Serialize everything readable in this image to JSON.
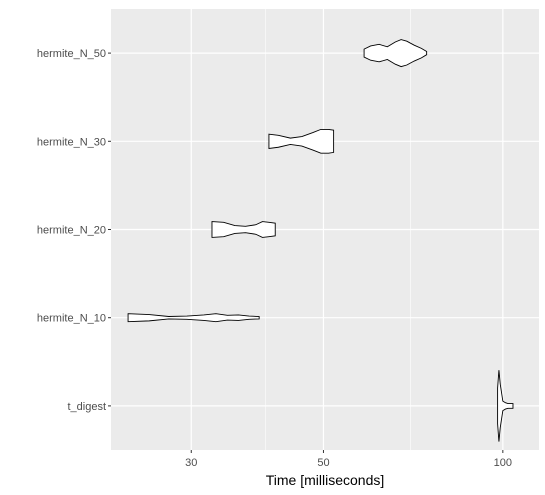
{
  "chart_data": {
    "type": "violin",
    "orientation": "horizontal",
    "title": "",
    "xlabel": "Time [milliseconds]",
    "ylabel": "",
    "x_scale": "log10",
    "xlim": [
      22,
      115
    ],
    "x_ticks": [
      30,
      50,
      100
    ],
    "x_tick_labels": [
      "30",
      "50",
      "100"
    ],
    "x_minor_gridlines": [
      40,
      70
    ],
    "grid": true,
    "legend": "none",
    "categories": [
      "hermite_N_50",
      "hermite_N_30",
      "hermite_N_20",
      "hermite_N_10",
      "t_digest"
    ],
    "series": [
      {
        "category": "hermite_N_50",
        "min": 58.5,
        "max": 74.5,
        "profile": [
          [
            58.5,
            0.1
          ],
          [
            60,
            0.18
          ],
          [
            62,
            0.22
          ],
          [
            64,
            0.16
          ],
          [
            66,
            0.28
          ],
          [
            67.5,
            0.34
          ],
          [
            69,
            0.3
          ],
          [
            71,
            0.2
          ],
          [
            73,
            0.12
          ],
          [
            74.5,
            0.04
          ]
        ]
      },
      {
        "category": "hermite_N_30",
        "min": 40.5,
        "max": 52,
        "profile": [
          [
            40.5,
            0.18
          ],
          [
            42,
            0.15
          ],
          [
            44,
            0.08
          ],
          [
            46,
            0.12
          ],
          [
            48,
            0.22
          ],
          [
            49.5,
            0.3
          ],
          [
            51,
            0.3
          ],
          [
            52,
            0.28
          ]
        ]
      },
      {
        "category": "hermite_N_20",
        "min": 32.5,
        "max": 41.5,
        "profile": [
          [
            32.5,
            0.2
          ],
          [
            34,
            0.18
          ],
          [
            35.5,
            0.1
          ],
          [
            37,
            0.08
          ],
          [
            38.5,
            0.12
          ],
          [
            39.5,
            0.2
          ],
          [
            40.5,
            0.18
          ],
          [
            41.5,
            0.16
          ]
        ]
      },
      {
        "category": "hermite_N_10",
        "min": 23.5,
        "max": 39,
        "profile": [
          [
            23.5,
            0.1
          ],
          [
            25.5,
            0.08
          ],
          [
            27.5,
            0.03
          ],
          [
            29.5,
            0.04
          ],
          [
            31.5,
            0.07
          ],
          [
            33,
            0.1
          ],
          [
            34.5,
            0.06
          ],
          [
            36,
            0.07
          ],
          [
            37.5,
            0.04
          ],
          [
            39,
            0.03
          ]
        ]
      },
      {
        "category": "t_digest",
        "min": 98,
        "max": 104,
        "profile": [
          [
            98,
            0.45
          ],
          [
            98.5,
            0.9
          ],
          [
            99,
            0.55
          ],
          [
            100,
            0.12
          ],
          [
            101,
            0.08
          ],
          [
            102,
            0.06
          ],
          [
            103,
            0.06
          ],
          [
            104,
            0.06
          ]
        ]
      }
    ],
    "colors": {
      "panel_background": "#ebebeb",
      "gridline": "#ffffff",
      "violin_fill": "#ffffff",
      "violin_stroke": "#000000",
      "tick_text": "#4d4d4d"
    }
  }
}
